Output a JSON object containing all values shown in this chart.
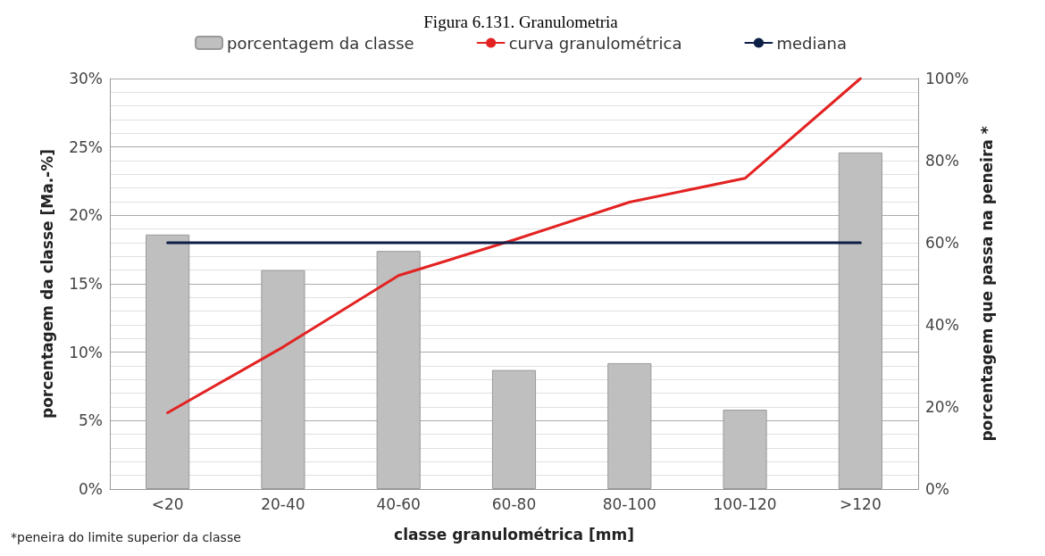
{
  "chart_data": {
    "type": "bar",
    "title": "Figura 6.131. Granulometria",
    "xlabel": "classe granulométrica [mm]",
    "ylabel": "porcentagem da classe [Ma.-%]",
    "y2label": "porcentagem que passa na peneira *",
    "categories": [
      "<20",
      "20-40",
      "40-60",
      "60-80",
      "80-100",
      "100-120",
      ">120"
    ],
    "series": [
      {
        "name": "porcentagem da classe",
        "color": "#bfbfbf",
        "values": [
          18.6,
          16.0,
          17.4,
          8.7,
          9.2,
          5.8,
          24.6
        ]
      },
      {
        "name": "curva granulométrica",
        "type": "line",
        "axis": "y2",
        "color": "#e32222",
        "values": [
          18.6,
          34.6,
          52,
          60.7,
          69.9,
          75.7,
          100
        ]
      },
      {
        "name": "mediana",
        "type": "line",
        "axis": "y2",
        "color": "#0e1f47",
        "values": [
          60,
          60,
          60,
          60,
          60,
          60,
          60
        ]
      }
    ],
    "ylim": [
      0,
      30
    ],
    "yticks": [
      {
        "value": 0,
        "label": "0%"
      },
      {
        "value": 5,
        "label": "5%"
      },
      {
        "value": 10,
        "label": "10%"
      },
      {
        "value": 15,
        "label": "15%"
      },
      {
        "value": 20,
        "label": "20%"
      },
      {
        "value": 25,
        "label": "25%"
      },
      {
        "value": 30,
        "label": "30%"
      }
    ],
    "y2lim": [
      0,
      100
    ],
    "y2ticks": [
      {
        "value": 0,
        "label": "0%"
      },
      {
        "value": 20,
        "label": "20%"
      },
      {
        "value": 40,
        "label": "40%"
      },
      {
        "value": 60,
        "label": "60%"
      },
      {
        "value": 80,
        "label": "80%"
      },
      {
        "value": 100,
        "label": "100%"
      }
    ],
    "grid": "y",
    "legend": "top",
    "marker": "none",
    "line_style": "solid",
    "annotations": [
      "*peneira do limite superior da classe"
    ]
  }
}
